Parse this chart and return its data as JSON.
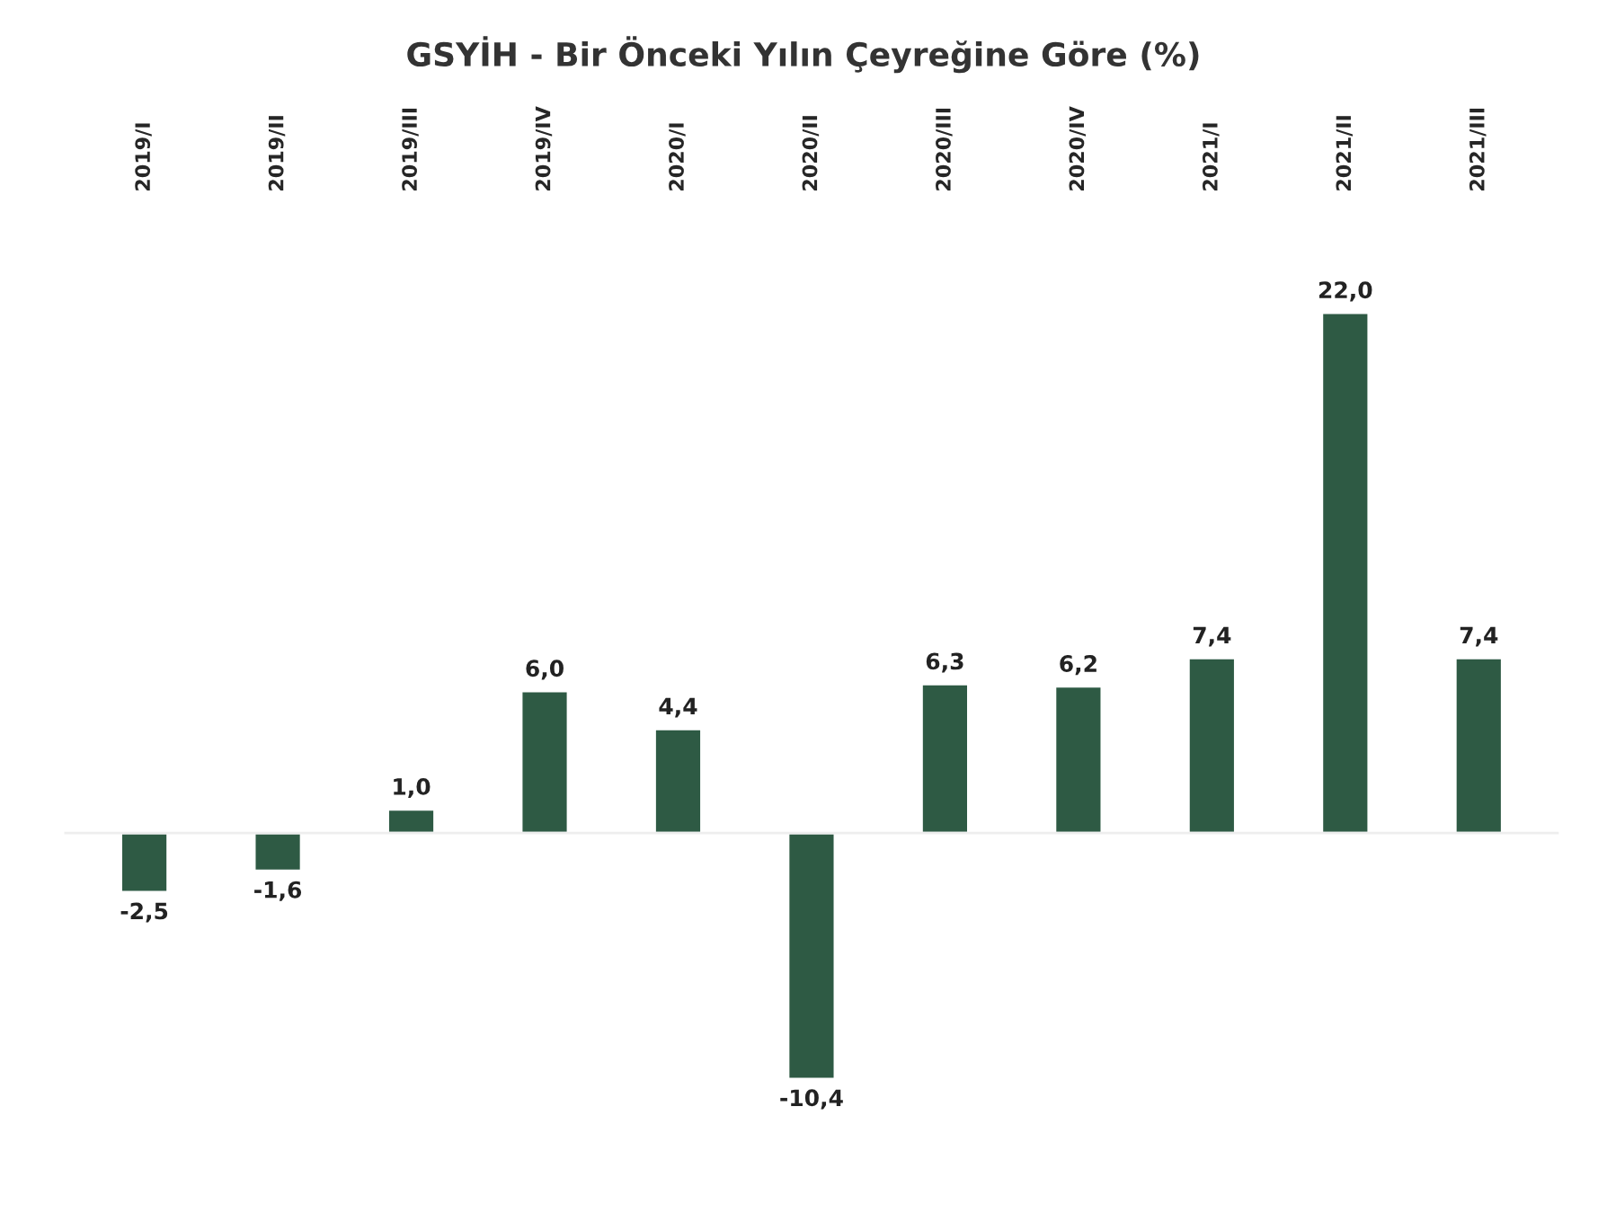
{
  "chart_data": {
    "type": "bar",
    "title": "GSYİH - Bir Önceki Yılın Çeyreğine Göre (%)",
    "categories": [
      "2019/I",
      "2019/II",
      "2019/III",
      "2019/IV",
      "2020/I",
      "2020/II",
      "2020/III",
      "2020/IV",
      "2021/I",
      "2021/II",
      "2021/III"
    ],
    "values": [
      -2.5,
      -1.6,
      1.0,
      6.0,
      4.4,
      -10.4,
      6.3,
      6.2,
      7.4,
      22.0,
      7.4
    ],
    "value_labels": [
      "-2,5",
      "-1,6",
      "1,0",
      "6,0",
      "4,4",
      "-10,4",
      "6,3",
      "6,2",
      "7,4",
      "22,0",
      "7,4"
    ],
    "color": "#2e5a44",
    "grid": false,
    "legend": false
  }
}
